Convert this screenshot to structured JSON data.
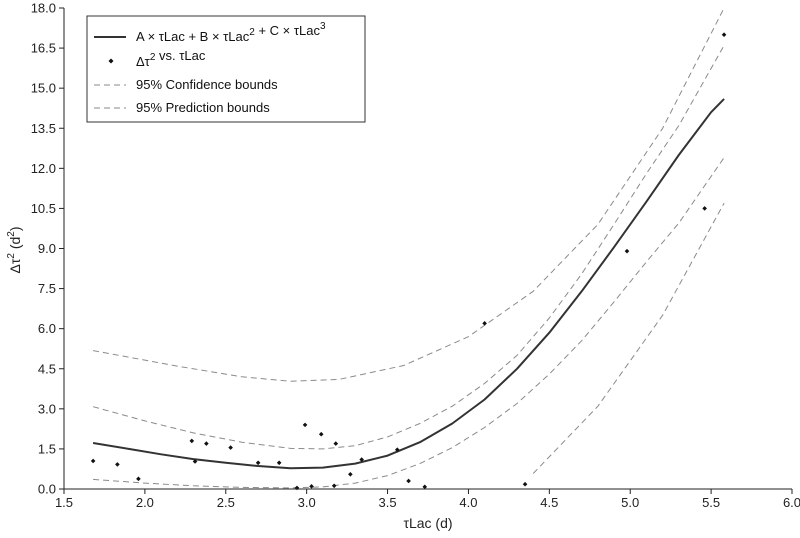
{
  "chart_data": {
    "type": "scatter",
    "xlim": [
      1.5,
      6.0
    ],
    "ylim": [
      0.0,
      18.0
    ],
    "x_ticks": [
      "1.5",
      "2.0",
      "2.5",
      "3.0",
      "3.5",
      "4.0",
      "4.5",
      "5.0",
      "5.5",
      "6.0"
    ],
    "y_ticks": [
      "0.0",
      "1.5",
      "3.0",
      "4.5",
      "6.0",
      "7.5",
      "9.0",
      "10.5",
      "12.0",
      "13.5",
      "15.0",
      "16.5",
      "18.0"
    ],
    "xlabel": {
      "main": "τLac (d)"
    },
    "ylabel": {
      "main": "Δτ",
      "sup": "2",
      "tail": " (d",
      "sup2": "2",
      "end": ")"
    },
    "grid": false,
    "legend_position": "top-left",
    "legend": [
      {
        "key": "fit",
        "parts": [
          {
            "t": "A × τLac + B × τLac"
          },
          {
            "t": "2",
            "sup": true
          },
          {
            "t": " + C × τLac"
          },
          {
            "t": "3",
            "sup": true
          }
        ]
      },
      {
        "key": "data",
        "parts": [
          {
            "t": "Δτ"
          },
          {
            "t": "2",
            "sup": true
          },
          {
            "t": " vs. τLac"
          }
        ]
      },
      {
        "key": "conf",
        "parts": [
          {
            "t": "95% Confidence bounds"
          }
        ]
      },
      {
        "key": "pred",
        "parts": [
          {
            "t": "95% Prediction bounds"
          }
        ]
      }
    ],
    "colors": {
      "fit": "#333333",
      "points": "#111111",
      "bounds": "#8a8a8a",
      "axis": "#222222"
    },
    "series": [
      {
        "key": "fit",
        "style": "solid",
        "x": [
          1.68,
          1.9,
          2.1,
          2.3,
          2.5,
          2.7,
          2.9,
          3.1,
          3.3,
          3.5,
          3.7,
          3.9,
          4.1,
          4.3,
          4.5,
          4.7,
          4.9,
          5.1,
          5.3,
          5.5,
          5.58
        ],
        "y": [
          1.72,
          1.5,
          1.3,
          1.12,
          0.98,
          0.86,
          0.78,
          0.8,
          0.95,
          1.25,
          1.75,
          2.45,
          3.35,
          4.5,
          5.85,
          7.4,
          9.05,
          10.75,
          12.5,
          14.1,
          14.6
        ]
      },
      {
        "key": "conf_upper",
        "style": "dashed",
        "x": [
          1.68,
          2.0,
          2.3,
          2.6,
          2.9,
          3.1,
          3.3,
          3.5,
          3.7,
          3.9,
          4.1,
          4.3,
          4.5,
          4.7,
          4.9,
          5.1,
          5.3,
          5.58
        ],
        "y": [
          3.08,
          2.55,
          2.1,
          1.75,
          1.52,
          1.5,
          1.62,
          1.95,
          2.45,
          3.1,
          3.95,
          5.0,
          6.4,
          8.05,
          9.9,
          11.8,
          13.6,
          16.6
        ]
      },
      {
        "key": "conf_lower",
        "style": "dashed",
        "x": [
          1.68,
          2.0,
          2.3,
          2.6,
          2.9,
          3.1,
          3.3,
          3.5,
          3.7,
          3.9,
          4.1,
          4.3,
          4.5,
          4.7,
          4.9,
          5.1,
          5.3,
          5.58
        ],
        "y": [
          0.36,
          0.22,
          0.12,
          0.06,
          0.04,
          0.08,
          0.22,
          0.5,
          0.95,
          1.55,
          2.3,
          3.2,
          4.3,
          5.55,
          7.0,
          8.5,
          9.95,
          12.4
        ]
      },
      {
        "key": "pred_upper",
        "style": "dashed",
        "x": [
          1.68,
          2.2,
          2.6,
          2.9,
          3.2,
          3.6,
          4.0,
          4.4,
          4.8,
          5.2,
          5.58
        ],
        "y": [
          5.18,
          4.6,
          4.2,
          4.03,
          4.1,
          4.62,
          5.7,
          7.4,
          9.9,
          13.5,
          18.0
        ]
      },
      {
        "key": "pred_lower",
        "style": "dashed",
        "x": [
          4.4,
          4.8,
          5.2,
          5.58
        ],
        "y": [
          0.58,
          3.1,
          6.5,
          10.7
        ]
      }
    ],
    "points": {
      "x": [
        1.68,
        1.83,
        1.96,
        2.29,
        2.31,
        2.38,
        2.53,
        2.7,
        2.83,
        2.94,
        2.99,
        3.03,
        3.09,
        3.17,
        3.18,
        3.27,
        3.34,
        3.56,
        3.63,
        3.73,
        4.1,
        4.35,
        4.98,
        5.46,
        5.58
      ],
      "y": [
        1.05,
        0.92,
        0.38,
        1.8,
        1.03,
        1.7,
        1.55,
        0.98,
        0.98,
        0.04,
        2.4,
        0.1,
        2.05,
        0.12,
        1.7,
        0.55,
        1.1,
        1.47,
        0.3,
        0.08,
        6.2,
        0.18,
        8.9,
        10.5,
        17.0
      ]
    }
  }
}
